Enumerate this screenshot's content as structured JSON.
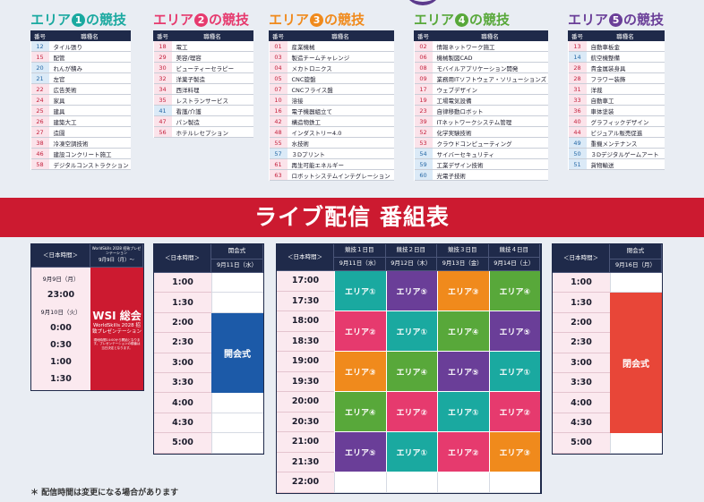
{
  "colors": {
    "a1": "#1aa9a0",
    "a2": "#e63a6e",
    "a3": "#f08a1c",
    "a4": "#58a83a",
    "a5": "#6a3e98",
    "navy": "#1f2a4a",
    "red": "#cc1a30"
  },
  "areas": [
    {
      "prefix": "エリア",
      "num": "1",
      "suffix": "の競技",
      "color": "#1aa9a0",
      "header": {
        "no": "番号",
        "name": "職種名"
      },
      "rows": [
        {
          "no": "12",
          "name": "タイル張り",
          "tone": "blue"
        },
        {
          "no": "15",
          "name": "配管",
          "tone": "pink"
        },
        {
          "no": "20",
          "name": "れんが積み",
          "tone": "blue"
        },
        {
          "no": "21",
          "name": "左官",
          "tone": "blue"
        },
        {
          "no": "22",
          "name": "広告美術",
          "tone": "pink"
        },
        {
          "no": "24",
          "name": "家具",
          "tone": "pink"
        },
        {
          "no": "25",
          "name": "建具",
          "tone": "pink"
        },
        {
          "no": "26",
          "name": "建築大工",
          "tone": "pink"
        },
        {
          "no": "27",
          "name": "造園",
          "tone": "pink"
        },
        {
          "no": "38",
          "name": "冷凍空調技術",
          "tone": "pink"
        },
        {
          "no": "46",
          "name": "建設コンクリート施工",
          "tone": "pink"
        },
        {
          "no": "58",
          "name": "デジタルコンストラクション",
          "tone": "pink"
        }
      ]
    },
    {
      "prefix": "エリア",
      "num": "2",
      "suffix": "の競技",
      "color": "#e63a6e",
      "header": {
        "no": "番号",
        "name": "職種名"
      },
      "rows": [
        {
          "no": "18",
          "name": "電工",
          "tone": "pink"
        },
        {
          "no": "29",
          "name": "美容/理容",
          "tone": "pink"
        },
        {
          "no": "30",
          "name": "ビューティーセラピー",
          "tone": "pink"
        },
        {
          "no": "32",
          "name": "洋菓子製造",
          "tone": "pink"
        },
        {
          "no": "34",
          "name": "西洋料理",
          "tone": "pink"
        },
        {
          "no": "35",
          "name": "レストランサービス",
          "tone": "pink"
        },
        {
          "no": "41",
          "name": "看護/介護",
          "tone": "blue"
        },
        {
          "no": "47",
          "name": "パン製造",
          "tone": "pink"
        },
        {
          "no": "56",
          "name": "ホテルレセプション",
          "tone": "pink"
        }
      ]
    },
    {
      "prefix": "エリア",
      "num": "3",
      "suffix": "の競技",
      "color": "#f08a1c",
      "header": {
        "no": "番号",
        "name": "職種名"
      },
      "rows": [
        {
          "no": "01",
          "name": "産業機械",
          "tone": "pink"
        },
        {
          "no": "03",
          "name": "製造チームチャレンジ",
          "tone": "pink"
        },
        {
          "no": "04",
          "name": "メカトロニクス",
          "tone": "pink"
        },
        {
          "no": "05",
          "name": "CNC旋盤",
          "tone": "pink"
        },
        {
          "no": "07",
          "name": "CNCフライス盤",
          "tone": "pink"
        },
        {
          "no": "10",
          "name": "溶接",
          "tone": "pink"
        },
        {
          "no": "16",
          "name": "電子機器組立て",
          "tone": "pink"
        },
        {
          "no": "42",
          "name": "構造物鉄工",
          "tone": "pink"
        },
        {
          "no": "48",
          "name": "インダストリー4.0",
          "tone": "pink"
        },
        {
          "no": "55",
          "name": "水技術",
          "tone": "pink"
        },
        {
          "no": "57",
          "name": "３Dプリント",
          "tone": "blue"
        },
        {
          "no": "61",
          "name": "再生可能エネルギー",
          "tone": "pink"
        },
        {
          "no": "63",
          "name": "ロボットシステムインテグレーション",
          "tone": "pink"
        }
      ]
    },
    {
      "prefix": "エリア",
      "num": "4",
      "suffix": "の競技",
      "color": "#58a83a",
      "header": {
        "no": "番号",
        "name": "職種名"
      },
      "rows": [
        {
          "no": "02",
          "name": "情報ネットワーク施工",
          "tone": "pink"
        },
        {
          "no": "06",
          "name": "機械製図CAD",
          "tone": "pink"
        },
        {
          "no": "08",
          "name": "モバイルアプリケーション開発",
          "tone": "pink"
        },
        {
          "no": "09",
          "name": "業務用ITソフトウェア・ソリューションズ",
          "tone": "pink"
        },
        {
          "no": "17",
          "name": "ウェブデザイン",
          "tone": "pink"
        },
        {
          "no": "19",
          "name": "工場電気設備",
          "tone": "pink"
        },
        {
          "no": "23",
          "name": "自律移動ロボット",
          "tone": "pink"
        },
        {
          "no": "39",
          "name": "ITネットワークシステム管理",
          "tone": "pink"
        },
        {
          "no": "52",
          "name": "化学実験技術",
          "tone": "pink"
        },
        {
          "no": "53",
          "name": "クラウドコンピューティング",
          "tone": "pink"
        },
        {
          "no": "54",
          "name": "サイバーセキュリティ",
          "tone": "blue"
        },
        {
          "no": "59",
          "name": "工業デザイン技術",
          "tone": "blue"
        },
        {
          "no": "60",
          "name": "光電子技術",
          "tone": "blue"
        }
      ]
    },
    {
      "prefix": "エリア",
      "num": "5",
      "suffix": "の競技",
      "color": "#6a3e98",
      "header": {
        "no": "番号",
        "name": "職種名"
      },
      "rows": [
        {
          "no": "13",
          "name": "自動車板金",
          "tone": "pink"
        },
        {
          "no": "14",
          "name": "航空機整備",
          "tone": "blue"
        },
        {
          "no": "28",
          "name": "貴金属装身具",
          "tone": "pink"
        },
        {
          "no": "28",
          "name": "フラワー装飾",
          "tone": "pink"
        },
        {
          "no": "31",
          "name": "洋裁",
          "tone": "pink"
        },
        {
          "no": "33",
          "name": "自動車工",
          "tone": "pink"
        },
        {
          "no": "36",
          "name": "車体塗装",
          "tone": "pink"
        },
        {
          "no": "40",
          "name": "グラフィックデザイン",
          "tone": "pink"
        },
        {
          "no": "44",
          "name": "ビジュアル販売促進",
          "tone": "pink"
        },
        {
          "no": "49",
          "name": "重機メンテナンス",
          "tone": "blue"
        },
        {
          "no": "50",
          "name": "３Dデジタルゲームアート",
          "tone": "blue"
        },
        {
          "no": "51",
          "name": "貨物輸送",
          "tone": "blue"
        }
      ]
    }
  ],
  "banner": "ライブ配信 番組表",
  "sched_wsi": {
    "time_header": "＜日本時間＞",
    "col_header": "WorldSkills 2028 招致プレゼンテーション",
    "date_header": "9月9日（月）〜",
    "times": [
      "9月9日（月）",
      "23:00",
      "9月10日（火）",
      "0:00",
      "0:30",
      "1:00",
      "1:30"
    ],
    "block_title": "WSI 総会",
    "block_sub": "WorldSkills 2028 招致プレゼンテーション",
    "block_note": "現地時間14:00から開始となります。プレゼンテーションの順番は当日決定となります。"
  },
  "sched_open": {
    "time_header": "＜日本時間＞",
    "col_header": "開会式",
    "date_header": "9月11日（水）",
    "times": [
      "1:00",
      "1:30",
      "2:00",
      "2:30",
      "3:00",
      "3:30",
      "4:00",
      "4:30",
      "5:00"
    ],
    "block": "開会式"
  },
  "sched_comp": {
    "time_header": "＜日本時間＞",
    "days": [
      {
        "label": "競技１日目",
        "date": "9月11日（水）"
      },
      {
        "label": "競技２日目",
        "date": "9月12日（木）"
      },
      {
        "label": "競技３日目",
        "date": "9月13日（金）"
      },
      {
        "label": "競技４日目",
        "date": "9月14日（土）"
      }
    ],
    "times": [
      "17:00",
      "17:30",
      "18:00",
      "18:30",
      "19:00",
      "19:30",
      "20:00",
      "20:30",
      "21:00",
      "21:30",
      "22:00"
    ],
    "blocks": [
      [
        "エリア①",
        "エリア⑤",
        "エリア③",
        "エリア④"
      ],
      [
        "エリア②",
        "エリア①",
        "エリア④",
        "エリア⑤"
      ],
      [
        "エリア③",
        "エリア④",
        "エリア⑤",
        "エリア①"
      ],
      [
        "エリア④",
        "エリア②",
        "エリア①",
        "エリア②"
      ],
      [
        "エリア⑤",
        "エリア①",
        "エリア②",
        "エリア③"
      ]
    ]
  },
  "sched_close": {
    "time_header": "＜日本時間＞",
    "col_header": "閉会式",
    "date_header": "9月16日（月）",
    "times": [
      "1:00",
      "1:30",
      "2:00",
      "2:30",
      "3:00",
      "3:30",
      "4:00",
      "4:30",
      "5:00"
    ],
    "block": "閉会式"
  },
  "footnote": "＊ 配信時間は変更になる場合があります"
}
